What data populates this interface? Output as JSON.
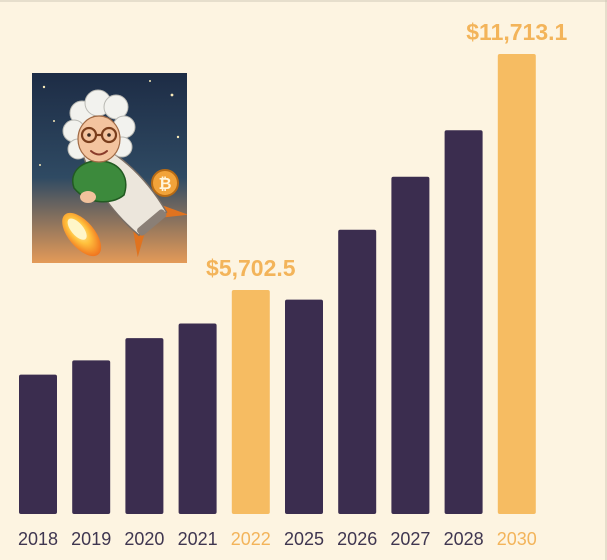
{
  "chart_data": {
    "type": "bar",
    "title": "",
    "xlabel": "",
    "ylabel": "",
    "categories": [
      "2018",
      "2019",
      "2020",
      "2021",
      "2022",
      "2025",
      "2026",
      "2027",
      "2028",
      "2030"
    ],
    "values": [
      3550,
      3910,
      4480,
      4850,
      5702.5,
      5460,
      7240,
      8590,
      9770,
      11713.1
    ],
    "highlighted": [
      "2022",
      "2030"
    ],
    "data_labels": [
      {
        "category": "2022",
        "text": "$5,702.5"
      },
      {
        "category": "2030",
        "text": "$11,713.1"
      }
    ],
    "ylim": [
      0,
      11713.1
    ],
    "grid": false,
    "legend": "none",
    "colors": {
      "bar": "#3b2d4f",
      "highlight": "#f6bc62",
      "background": "#fdf4e1",
      "tick_label": "#3f3650",
      "highlight_label": "#f3b45a"
    }
  },
  "illustration": {
    "icon": "grandma-riding-bitcoin-rocket-icon",
    "coin_symbol": "₿"
  }
}
